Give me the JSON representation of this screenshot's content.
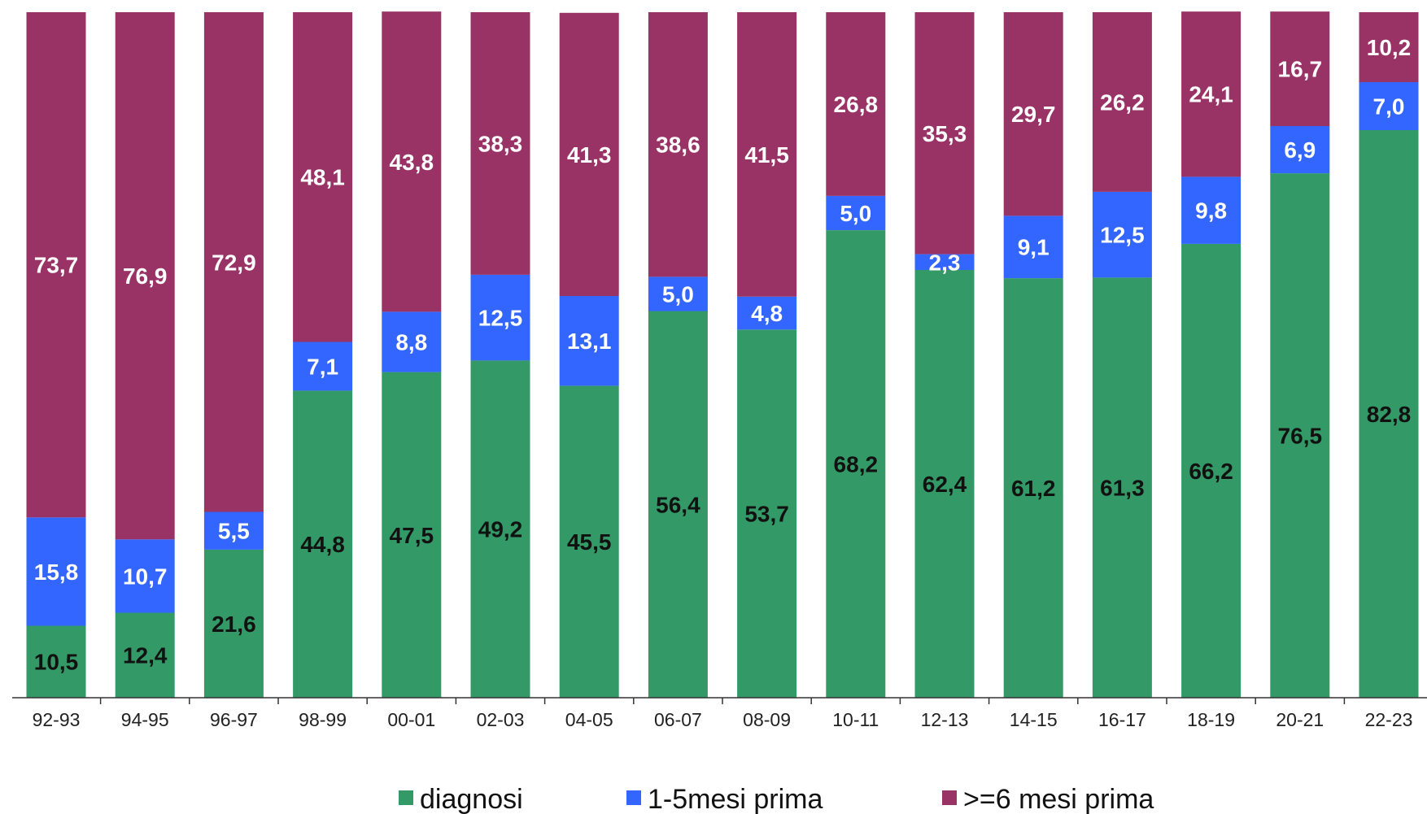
{
  "chart_data": {
    "type": "bar",
    "stacked": true,
    "normalized_percent": true,
    "title": "",
    "xlabel": "",
    "ylabel": "",
    "ylim": [
      0,
      100
    ],
    "grid": false,
    "legend_position": "bottom",
    "categories": [
      "92-93",
      "94-95",
      "96-97",
      "98-99",
      "00-01",
      "02-03",
      "04-05",
      "06-07",
      "08-09",
      "10-11",
      "12-13",
      "14-15",
      "16-17",
      "18-19",
      "20-21",
      "22-23"
    ],
    "series": [
      {
        "name": "diagnosi",
        "color": "#339966",
        "label_color": "#111111",
        "values": [
          10.5,
          12.4,
          21.6,
          44.8,
          47.5,
          49.2,
          45.5,
          56.4,
          53.7,
          68.2,
          62.4,
          61.2,
          61.3,
          66.2,
          76.5,
          82.8
        ],
        "labels": [
          "10,5",
          "12,4",
          "21,6",
          "44,8",
          "47,5",
          "49,2",
          "45,5",
          "56,4",
          "53,7",
          "68,2",
          "62,4",
          "61,2",
          "61,3",
          "66,2",
          "76,5",
          "82,8"
        ]
      },
      {
        "name": "1-5mesi prima",
        "color": "#3366FF",
        "label_color": "#ffffff",
        "values": [
          15.8,
          10.7,
          5.5,
          7.1,
          8.8,
          12.5,
          13.1,
          5.0,
          4.8,
          5.0,
          2.3,
          9.1,
          12.5,
          9.8,
          6.9,
          7.0
        ],
        "labels": [
          "15,8",
          "10,7",
          "5,5",
          "7,1",
          "8,8",
          "12,5",
          "13,1",
          "5,0",
          "4,8",
          "5,0",
          "2,3",
          "9,1",
          "12,5",
          "9,8",
          "6,9",
          "7,0"
        ]
      },
      {
        "name": ">=6 mesi prima",
        "color": "#993366",
        "label_color": "#ffffff",
        "values": [
          73.7,
          76.9,
          72.9,
          48.1,
          43.8,
          38.3,
          41.3,
          38.6,
          41.5,
          26.8,
          35.3,
          29.7,
          26.2,
          24.1,
          16.7,
          10.2
        ],
        "labels": [
          "73,7",
          "76,9",
          "72,9",
          "48,1",
          "43,8",
          "38,3",
          "41,3",
          "38,6",
          "41,5",
          "26,8",
          "35,3",
          "29,7",
          "26,2",
          "24,1",
          "16,7",
          "10,2"
        ]
      }
    ]
  }
}
